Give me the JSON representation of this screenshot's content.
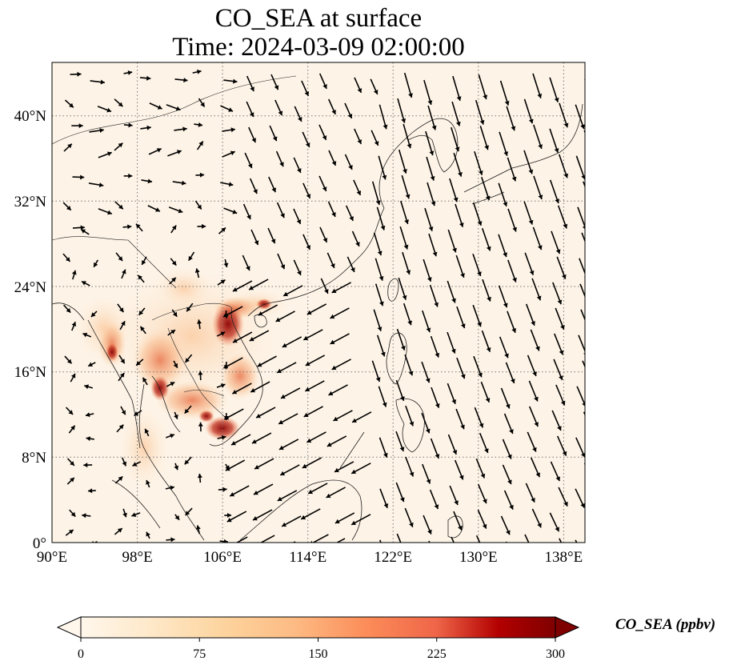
{
  "title": {
    "line1": "CO_SEA at surface",
    "line2": "Time: 2024-03-09 02:00:00"
  },
  "map": {
    "variable": "CO_SEA",
    "level": "surface",
    "lon_range": [
      90,
      140
    ],
    "lat_range": [
      0,
      45
    ],
    "gridlines": "dotted",
    "coastlines": true,
    "wind_vectors": true,
    "x_ticks": [
      "90°E",
      "98°E",
      "106°E",
      "114°E",
      "122°E",
      "130°E",
      "138°E"
    ],
    "y_ticks": [
      "0°",
      "8°N",
      "16°N",
      "24°N",
      "32°N",
      "40°N"
    ],
    "colors": {
      "low": "#fff5eb",
      "mid": "#fdae6b",
      "high": "#7f0000"
    }
  },
  "colorbar": {
    "label": "CO_SEA (ppbv)",
    "ticks": [
      "0",
      "75",
      "150",
      "225",
      "300"
    ],
    "extend": "both",
    "colormap": "OrRd"
  }
}
